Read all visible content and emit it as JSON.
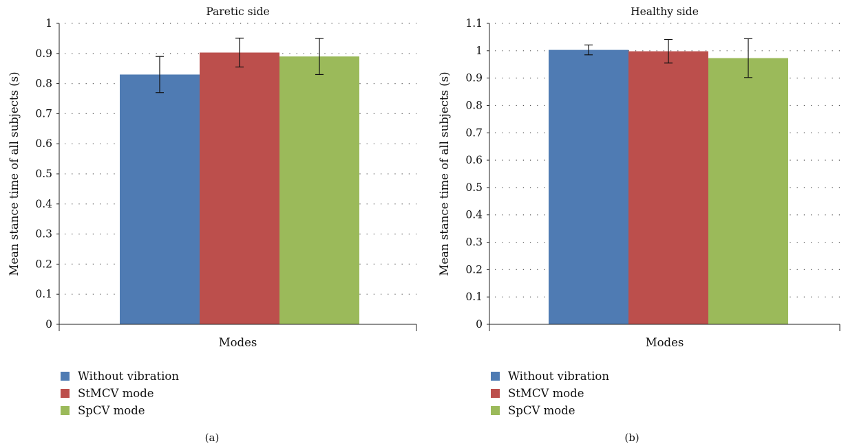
{
  "chart_data": [
    {
      "type": "bar",
      "title": "Paretic side",
      "xlabel": "Modes",
      "ylabel": "Mean stance time of all subjects (s)",
      "ylim": [
        0,
        1
      ],
      "yticks": [
        "0",
        "0.1",
        "0.2",
        "0.3",
        "0.4",
        "0.5",
        "0.6",
        "0.7",
        "0.8",
        "0.9",
        "1"
      ],
      "grid": "dotted horizontal",
      "legend_position": "bottom-left",
      "series": [
        {
          "name": "Without vibration",
          "value": 0.83,
          "error": 0.06,
          "color": "#4f7bb3"
        },
        {
          "name": "StMCV mode",
          "value": 0.903,
          "error": 0.048,
          "color": "#bc4f4c"
        },
        {
          "name": "SpCV mode",
          "value": 0.89,
          "error": 0.06,
          "color": "#9bba5a"
        }
      ],
      "panel_label": "(a)"
    },
    {
      "type": "bar",
      "title": "Healthy side",
      "xlabel": "Modes",
      "ylabel": "Mean stance time of all subjects (s)",
      "ylim": [
        0,
        1.1
      ],
      "yticks": [
        "0",
        "0.1",
        "0.2",
        "0.3",
        "0.4",
        "0.5",
        "0.6",
        "0.7",
        "0.8",
        "0.9",
        "1",
        "1.1"
      ],
      "grid": "dotted horizontal",
      "legend_position": "bottom-left",
      "series": [
        {
          "name": "Without vibration",
          "value": 1.003,
          "error": 0.018,
          "color": "#4f7bb3"
        },
        {
          "name": "StMCV mode",
          "value": 0.998,
          "error": 0.043,
          "color": "#bc4f4c"
        },
        {
          "name": "SpCV mode",
          "value": 0.973,
          "error": 0.071,
          "color": "#9bba5a"
        }
      ],
      "panel_label": "(b)"
    }
  ]
}
